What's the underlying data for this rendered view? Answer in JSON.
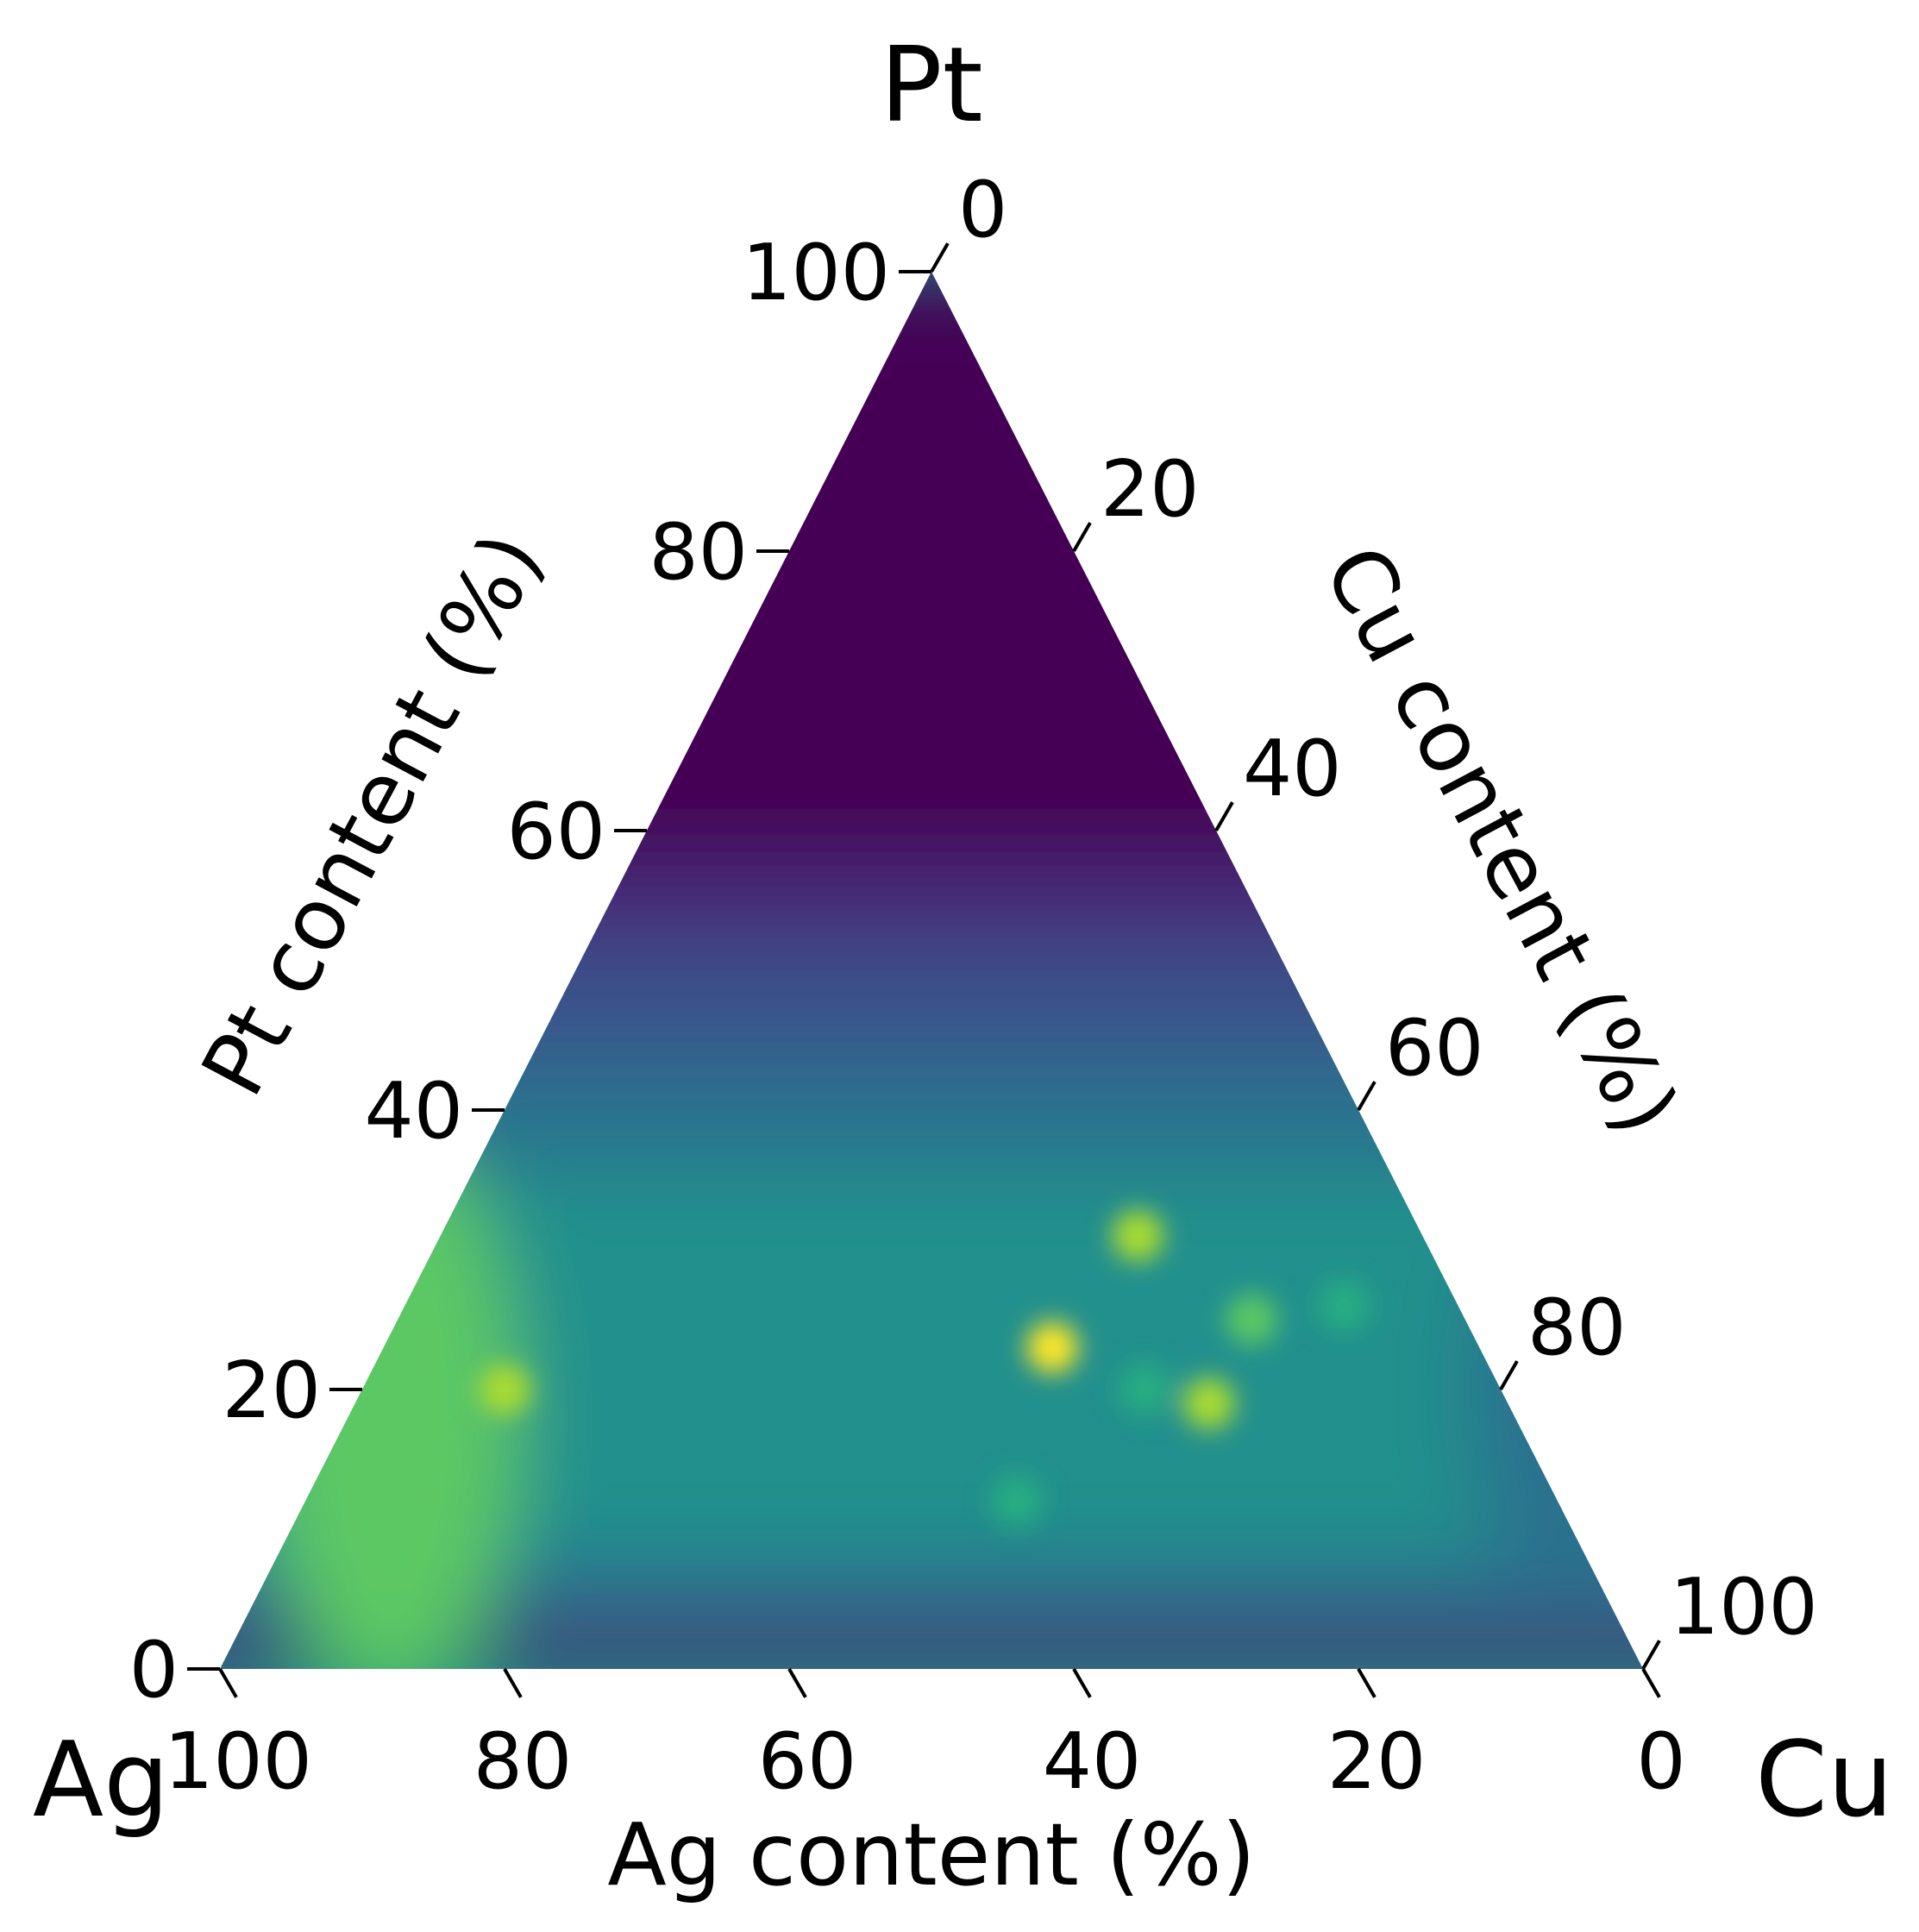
{
  "chart_data": {
    "type": "heatmap",
    "subtype": "ternary",
    "corners": {
      "top": "Pt",
      "left": "Ag",
      "right": "Cu"
    },
    "axis_labels": {
      "left": "Pt content (%)",
      "right": "Cu content (%)",
      "bottom": "Ag content (%)"
    },
    "ticks": {
      "left": {
        "values": [
          0,
          20,
          40,
          60,
          80,
          100
        ],
        "labels": [
          "0",
          "20",
          "40",
          "60",
          "80",
          "100"
        ]
      },
      "right": {
        "values": [
          0,
          20,
          40,
          60,
          80,
          100
        ],
        "labels": [
          "0",
          "20",
          "40",
          "60",
          "80",
          "100"
        ]
      },
      "bottom": {
        "values": [
          100,
          80,
          60,
          40,
          20,
          0
        ],
        "labels": [
          "100",
          "80",
          "60",
          "40",
          "20",
          "0"
        ]
      }
    },
    "colormap": [
      "#440154",
      "#472c7a",
      "#3b518b",
      "#2c718e",
      "#21908d",
      "#27ad81",
      "#5cc863",
      "#aadc32",
      "#fde725"
    ],
    "grid": false,
    "legend": "none",
    "hotspots": [
      {
        "Pt": 23,
        "Cu": 47,
        "value": 1.0
      },
      {
        "Pt": 31,
        "Cu": 49,
        "value": 0.93
      },
      {
        "Pt": 19,
        "Cu": 60,
        "value": 0.88
      },
      {
        "Pt": 25,
        "Cu": 60,
        "value": 0.75
      },
      {
        "Pt": 26,
        "Cu": 66,
        "value": 0.6
      },
      {
        "Pt": 20,
        "Cu": 10,
        "value": 0.85
      },
      {
        "Pt": 15,
        "Cu": 7,
        "value": 0.8
      },
      {
        "Pt": 12,
        "Cu": 50,
        "value": 0.62
      },
      {
        "Pt": 20,
        "Cu": 55,
        "value": 0.62
      }
    ]
  }
}
